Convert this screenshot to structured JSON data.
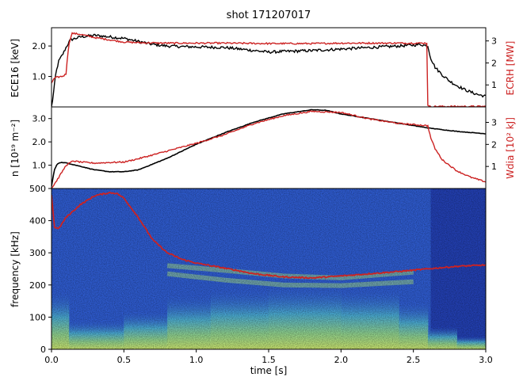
{
  "figure": {
    "title": "shot 171207017",
    "xlabel": "time [s]"
  },
  "chart_data": [
    {
      "type": "line",
      "panel": "top",
      "ylabel_left": "ECE16 [keV]",
      "ylabel_right": "ECRH [MW]",
      "xlim": [
        0,
        3.0
      ],
      "ylim_left": [
        0,
        2.6
      ],
      "ylim_right": [
        0,
        3.6
      ],
      "yticks_left": [
        1.0,
        2.0
      ],
      "yticks_right": [
        1,
        2,
        3
      ],
      "series": [
        {
          "axis": "left",
          "color": "#000000",
          "x": [
            0,
            0.01,
            0.03,
            0.05,
            0.08,
            0.1,
            0.13,
            0.2,
            0.3,
            0.4,
            0.5,
            0.6,
            0.7,
            0.8,
            0.9,
            1.0,
            1.1,
            1.2,
            1.3,
            1.4,
            1.5,
            1.6,
            1.8,
            2.0,
            2.2,
            2.4,
            2.55,
            2.6,
            2.62,
            2.65,
            2.7,
            2.75,
            2.8,
            2.85,
            2.9,
            2.95,
            3.0
          ],
          "y": [
            0.0,
            0.3,
            1.1,
            1.5,
            1.75,
            1.95,
            2.2,
            2.3,
            2.35,
            2.3,
            2.25,
            2.15,
            2.05,
            2.0,
            1.98,
            1.97,
            1.96,
            1.95,
            1.9,
            1.85,
            1.8,
            1.82,
            1.85,
            1.9,
            1.95,
            2.0,
            2.05,
            2.0,
            1.6,
            1.3,
            1.05,
            0.85,
            0.7,
            0.58,
            0.48,
            0.4,
            0.35
          ]
        },
        {
          "axis": "right",
          "color": "#cc2222",
          "x": [
            0,
            0.02,
            0.04,
            0.08,
            0.1,
            0.11,
            0.12,
            0.13,
            0.14,
            0.2,
            0.3,
            0.4,
            0.5,
            0.6,
            0.8,
            1.0,
            1.2,
            1.5,
            1.8,
            2.0,
            2.3,
            2.55,
            2.595,
            2.6,
            2.605,
            2.7,
            3.0
          ],
          "y": [
            1.1,
            1.3,
            1.35,
            1.4,
            1.5,
            2.3,
            2.8,
            3.1,
            3.35,
            3.3,
            3.15,
            3.05,
            2.95,
            2.92,
            2.9,
            2.9,
            2.9,
            2.88,
            2.88,
            2.9,
            2.9,
            2.9,
            2.9,
            0.1,
            0.02,
            0.02,
            0.02
          ]
        }
      ]
    },
    {
      "type": "line",
      "panel": "middle",
      "ylabel_left": "n [10¹⁹ m⁻²]",
      "ylabel_right": "Wdia [10² kJ]",
      "xlim": [
        0,
        3.0
      ],
      "ylim_left": [
        0,
        3.5
      ],
      "ylim_right": [
        0,
        3.7
      ],
      "yticks_left": [
        1.0,
        2.0,
        3.0
      ],
      "yticks_right": [
        1,
        2,
        3
      ],
      "series": [
        {
          "axis": "left",
          "color": "#000000",
          "x": [
            0,
            0.02,
            0.04,
            0.06,
            0.1,
            0.2,
            0.3,
            0.4,
            0.5,
            0.6,
            0.8,
            1.0,
            1.2,
            1.4,
            1.6,
            1.8,
            1.9,
            2.0,
            2.2,
            2.4,
            2.6,
            2.8,
            3.0
          ],
          "y": [
            0.1,
            0.8,
            1.05,
            1.12,
            1.1,
            0.95,
            0.8,
            0.72,
            0.72,
            0.8,
            1.3,
            1.9,
            2.4,
            2.85,
            3.2,
            3.38,
            3.35,
            3.2,
            3.0,
            2.8,
            2.6,
            2.45,
            2.35
          ]
        },
        {
          "axis": "right",
          "color": "#cc2222",
          "x": [
            0,
            0.05,
            0.1,
            0.15,
            0.2,
            0.3,
            0.4,
            0.5,
            0.6,
            0.8,
            1.0,
            1.2,
            1.4,
            1.6,
            1.8,
            2.0,
            2.2,
            2.4,
            2.6,
            2.62,
            2.65,
            2.7,
            2.8,
            2.9,
            3.0
          ],
          "y": [
            0.0,
            0.5,
            1.05,
            1.25,
            1.2,
            1.15,
            1.18,
            1.2,
            1.35,
            1.7,
            2.05,
            2.45,
            2.95,
            3.3,
            3.5,
            3.45,
            3.15,
            2.95,
            2.85,
            2.3,
            1.8,
            1.3,
            0.8,
            0.5,
            0.3
          ]
        }
      ]
    },
    {
      "type": "heatmap",
      "panel": "bottom",
      "ylabel": "frequency [kHz]",
      "xlabel": "time [s]",
      "xlim": [
        0,
        3.0
      ],
      "ylim": [
        0,
        500
      ],
      "xticks": [
        "0.0",
        "0.5",
        "1.0",
        "1.5",
        "2.0",
        "2.5",
        "3.0"
      ],
      "yticks": [
        0,
        100,
        200,
        300,
        400,
        500
      ],
      "colormap": [
        "#1a2a9a",
        "#2f5cd0",
        "#3e8fd8",
        "#58b8c8",
        "#9ed88a",
        "#e2e87a"
      ],
      "overlay": {
        "color": "#cc2222",
        "x": [
          0,
          0.02,
          0.05,
          0.1,
          0.2,
          0.3,
          0.4,
          0.45,
          0.5,
          0.6,
          0.7,
          0.8,
          0.9,
          1.0,
          1.2,
          1.4,
          1.6,
          1.8,
          2.0,
          2.2,
          2.4,
          2.6,
          2.8,
          3.0
        ],
        "y": [
          480,
          380,
          375,
          410,
          450,
          478,
          487,
          485,
          470,
          410,
          340,
          300,
          280,
          268,
          252,
          235,
          225,
          222,
          228,
          235,
          242,
          250,
          258,
          262
        ]
      },
      "bands": [
        {
          "x": [
            0.8,
            1.2,
            1.6,
            2.0,
            2.5
          ],
          "y": [
            260,
            245,
            228,
            222,
            240
          ]
        },
        {
          "x": [
            0.8,
            1.2,
            1.6,
            2.0,
            2.5
          ],
          "y": [
            235,
            215,
            200,
            198,
            210
          ]
        }
      ]
    }
  ]
}
